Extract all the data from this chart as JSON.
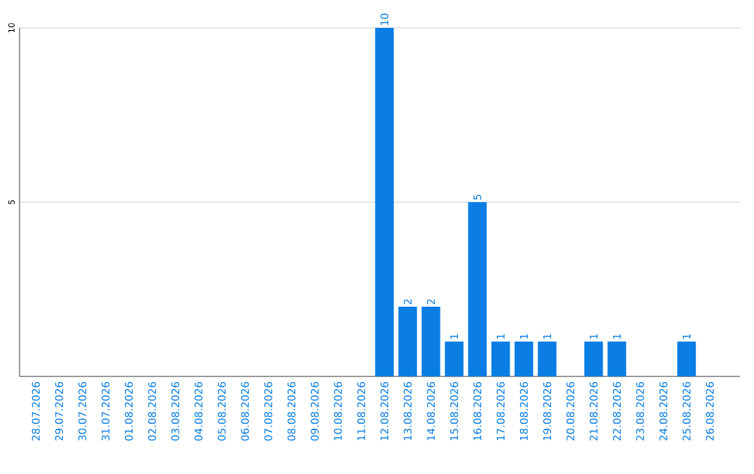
{
  "chart_data": {
    "type": "bar",
    "categories": [
      "28.07.2026",
      "29.07.2026",
      "30.07.2026",
      "31.07.2026",
      "01.08.2026",
      "02.08.2026",
      "03.08.2026",
      "04.08.2026",
      "05.08.2026",
      "06.08.2026",
      "07.08.2026",
      "08.08.2026",
      "09.08.2026",
      "10.08.2026",
      "11.08.2026",
      "12.08.2026",
      "13.08.2026",
      "14.08.2026",
      "15.08.2026",
      "16.08.2026",
      "17.08.2026",
      "18.08.2026",
      "19.08.2026",
      "20.08.2026",
      "21.08.2026",
      "22.08.2026",
      "23.08.2026",
      "24.08.2026",
      "25.08.2026",
      "26.08.2026"
    ],
    "values": [
      0,
      0,
      0,
      0,
      0,
      0,
      0,
      0,
      0,
      0,
      0,
      0,
      0,
      0,
      0,
      10,
      2,
      2,
      1,
      5,
      1,
      1,
      1,
      0,
      1,
      1,
      0,
      0,
      1,
      0
    ],
    "value_labels": [
      null,
      null,
      null,
      null,
      null,
      null,
      null,
      null,
      null,
      null,
      null,
      null,
      null,
      null,
      null,
      "10",
      "2",
      "2",
      "1",
      "5",
      "1",
      "1",
      "1",
      null,
      "1",
      "1",
      null,
      null,
      "1",
      null
    ],
    "color": "#0a7ee2",
    "ylim": [
      0,
      10
    ],
    "yticks": [
      5,
      10
    ],
    "grid": "y"
  }
}
